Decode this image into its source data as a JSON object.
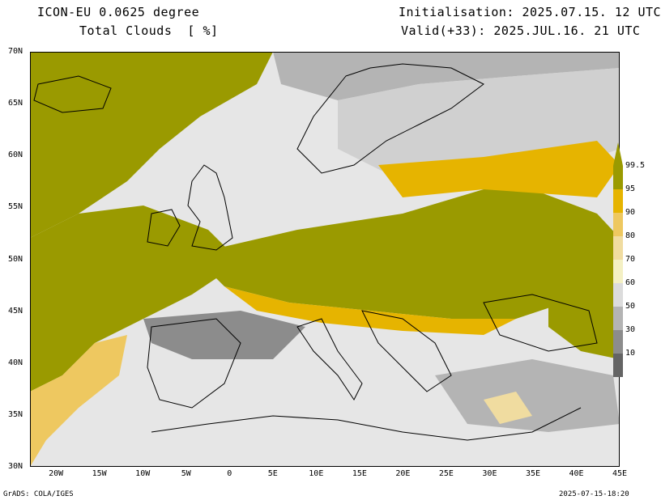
{
  "header": {
    "model_line": "ICON-EU 0.0625 degree",
    "variable_line": "Total Clouds  [ %]",
    "init_line": "Initialisation: 2025.07.15. 12 UTC",
    "valid_line": "Valid(+33): 2025.JUL.16. 21 UTC"
  },
  "map": {
    "lat_labels": [
      "70N",
      "65N",
      "60N",
      "55N",
      "50N",
      "45N",
      "40N",
      "35N",
      "30N"
    ],
    "lon_labels": [
      "20W",
      "15W",
      "10W",
      "5W",
      "0",
      "5E",
      "10E",
      "15E",
      "20E",
      "25E",
      "30E",
      "35E",
      "40E",
      "45E"
    ],
    "lat_range": [
      30,
      70
    ],
    "lon_range": [
      -23,
      45
    ],
    "background_color": "#e6e6e6",
    "coastline_color": "#000000"
  },
  "colorbar": {
    "levels": [
      "99.5",
      "95",
      "90",
      "80",
      "70",
      "60",
      "50",
      "30",
      "10"
    ],
    "colors": [
      "#9a9a00",
      "#e6b400",
      "#eec860",
      "#f0dca0",
      "#f4f0c4",
      "#dcdcdc",
      "#b4b4b4",
      "#8c8c8c",
      "#646464"
    ]
  },
  "footer": {
    "left": "GrADS: COLA/IGES",
    "right": "2025-07-15-18:20"
  }
}
